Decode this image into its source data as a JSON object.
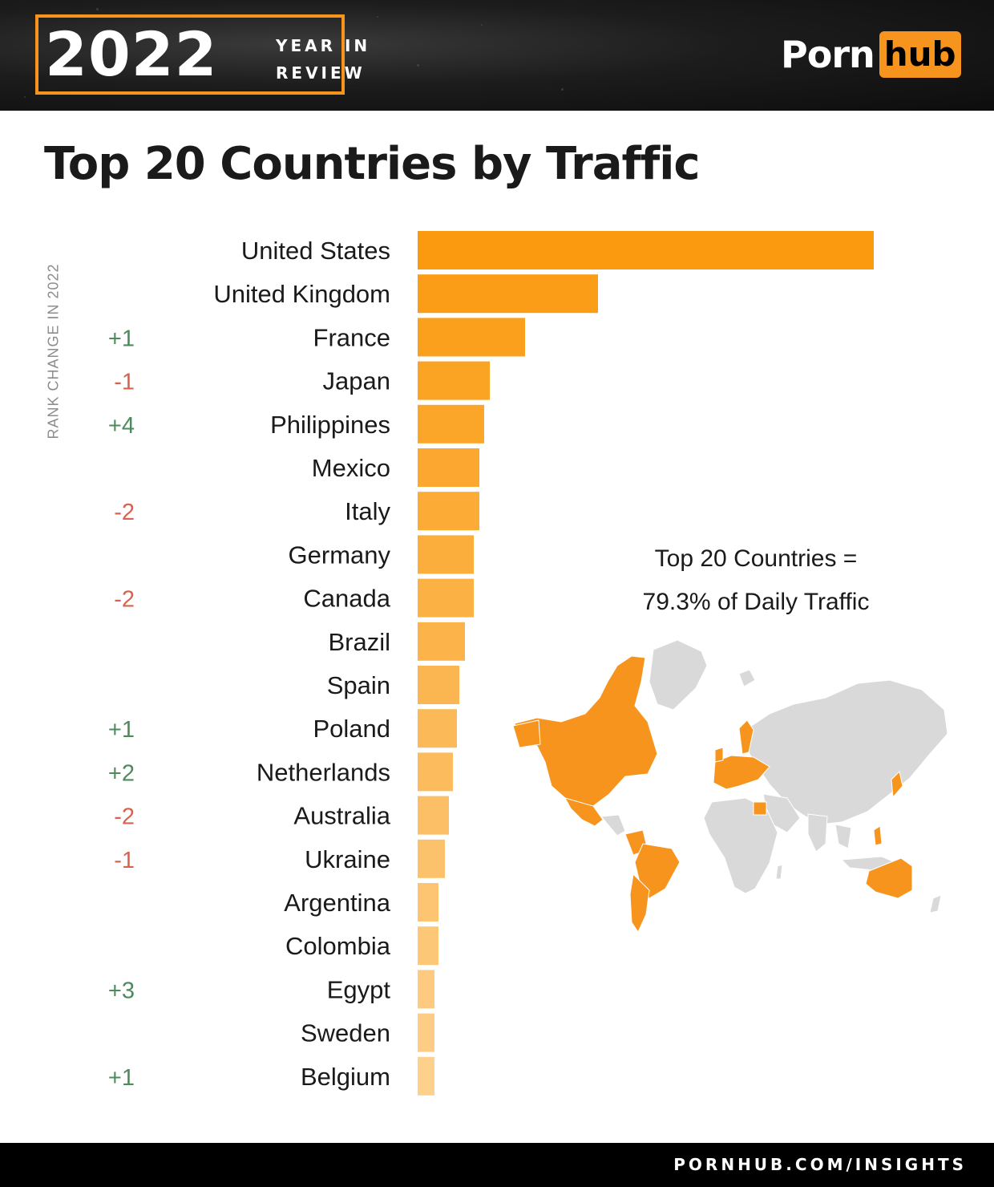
{
  "header": {
    "year": "2022",
    "year_in": "YEAR IN",
    "review": "REVIEW",
    "logo_left": "Porn",
    "logo_right": "hub",
    "accent_color": "#f7941d"
  },
  "footer": {
    "url": "PORNHUB.COM/INSIGHTS"
  },
  "annotation": {
    "line1": "Top 20 Countries =",
    "line2": "79.3% of Daily Traffic"
  },
  "map": {
    "icon": "world-map-icon",
    "highlight_color": "#f7941d",
    "base_color": "#d9d9d9"
  },
  "chart_data": {
    "type": "bar",
    "orientation": "horizontal",
    "title": "Top 20 Countries by Traffic",
    "rank_change_label": "RANK CHANGE IN 2022",
    "categories": [
      "United States",
      "United Kingdom",
      "France",
      "Japan",
      "Philippines",
      "Mexico",
      "Italy",
      "Germany",
      "Canada",
      "Brazil",
      "Spain",
      "Poland",
      "Netherlands",
      "Australia",
      "Ukraine",
      "Argentina",
      "Colombia",
      "Egypt",
      "Sweden",
      "Belgium"
    ],
    "rank_changes": [
      "",
      "",
      "+1",
      "-1",
      "+4",
      "",
      "-2",
      "",
      "-2",
      "",
      "",
      "+1",
      "+2",
      "-2",
      "-1",
      "",
      "",
      "+3",
      "",
      "+1"
    ],
    "values": [
      569,
      225,
      134,
      90,
      83,
      77,
      77,
      70,
      70,
      59,
      52,
      49,
      44,
      39,
      34,
      26,
      26,
      21,
      21,
      21
    ],
    "value_note": "relative bar lengths (unlabeled)",
    "color_scale": [
      "#fb9a0f",
      "#fdd08c"
    ],
    "positive_color": "#4d8a5c",
    "negative_color": "#d8624f",
    "grid": false
  }
}
